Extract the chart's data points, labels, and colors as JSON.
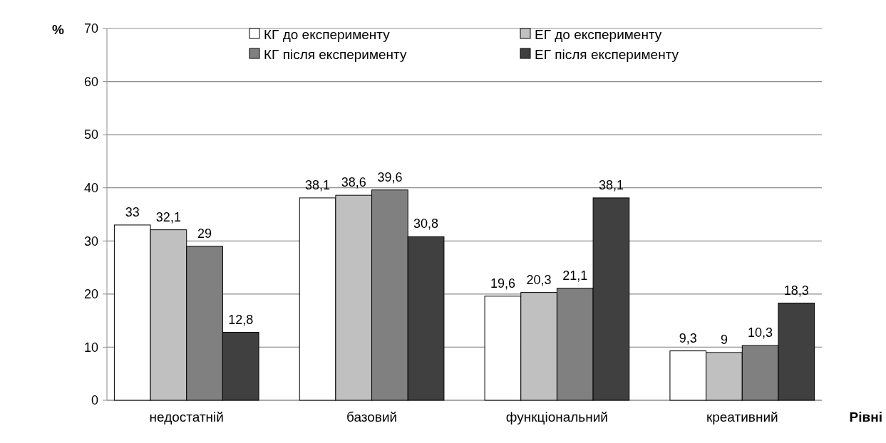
{
  "chart_data": {
    "type": "bar",
    "ylabel": "%",
    "xlabel": "Рівні",
    "categories": [
      "недостатній",
      "базовий",
      "функціональний",
      "креативний"
    ],
    "series": [
      {
        "name": "КГ до експерименту",
        "color": "#ffffff",
        "values": [
          33,
          38.1,
          19.6,
          9.3
        ],
        "value_labels": [
          "33",
          "38,1",
          "19,6",
          "9,3"
        ]
      },
      {
        "name": "ЕГ до експерименту",
        "color": "#c0c0c0",
        "values": [
          32.1,
          38.6,
          20.3,
          9
        ],
        "value_labels": [
          "32,1",
          "38,6",
          "20,3",
          "9"
        ]
      },
      {
        "name": "КГ після експерименту",
        "color": "#808080",
        "values": [
          29,
          39.6,
          21.1,
          10.3
        ],
        "value_labels": [
          "29",
          "39,6",
          "21,1",
          "10,3"
        ]
      },
      {
        "name": "ЕГ після експерименту",
        "color": "#404040",
        "values": [
          12.8,
          30.8,
          38.1,
          18.3
        ],
        "value_labels": [
          "12,8",
          "30,8",
          "38,1",
          "18,3"
        ]
      }
    ],
    "ylim": [
      0,
      70
    ],
    "yticks": [
      0,
      10,
      20,
      30,
      40,
      50,
      60,
      70
    ],
    "grid": "y",
    "legend": "top"
  }
}
